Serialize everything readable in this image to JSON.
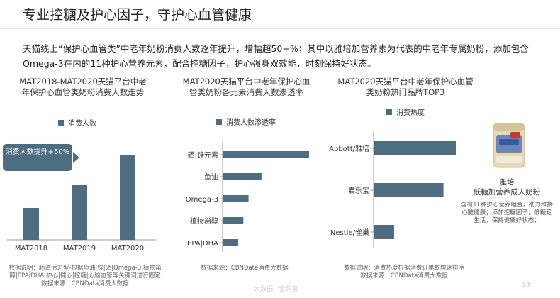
{
  "page": {
    "title": "专业控糖及护心因子，守护心血管健康",
    "summary": "天猫线上“保护心血管类”中老年奶粉消费人数逐年提升，增幅超50+%；其中以雅培加营养素为代表的中老年专属奶粉，添加包含Omega-3在内的11种护心营养元素，配合控糖因子，护心强身双效能，时刻保持好状态。",
    "page_number": "27",
    "watermark": "大数据 · 全洞察"
  },
  "colors": {
    "bar": "#4f6d80",
    "accent": "#7f1d2e"
  },
  "chart_data": [
    {
      "type": "bar",
      "title": "MAT2018-MAT2020天猫平台中老年保护心血管类奶粉消费人数走势",
      "legend": "消费人数",
      "categories": [
        "MAT2018",
        "MAT2019",
        "MAT2020"
      ],
      "values": [
        45,
        77,
        120
      ],
      "callout": "消费人数提升+50%",
      "footnote": "数据说明：肠道活力型-根据鱼油|锌|硒|Omega-3|植物甾醇|EPA|DHA|护心|健心|控糖|心脑血管等关键词进行圈定",
      "source": "数据来源：CBNData消费大数据"
    },
    {
      "type": "bar",
      "orientation": "horizontal",
      "title": "MAT2020天猫平台中老年保护心血管类奶粉各元素消费人数渗透率",
      "legend": "消费人数渗透率",
      "categories": [
        "硒|锌元素",
        "鱼油",
        "Omega-3",
        "植物甾醇",
        "EPA|DHA"
      ],
      "values": [
        100,
        45,
        30,
        24,
        18
      ],
      "source": "数据来源：CBNData消费大数据"
    },
    {
      "type": "bar",
      "orientation": "horizontal",
      "title": "MAT2020天猫平台中老年保护心血管类奶粉热门品牌TOP3",
      "legend": "消费热度",
      "categories": [
        "Abbott/雅培",
        "君乐宝",
        "Nestle/雀巢"
      ],
      "values": [
        100,
        85,
        25
      ],
      "footnote": "数据说明：消费热度根据消费订单数增速排序",
      "source": "数据来源：CBNData消费大数据"
    }
  ],
  "product": {
    "brand": "雅培",
    "name": "低糖加营养成人奶粉",
    "desc": "含有11种护心营养组合，助力维持心脏健康；添加控糖因子，低糖轻生活，保持健康好状态；"
  }
}
